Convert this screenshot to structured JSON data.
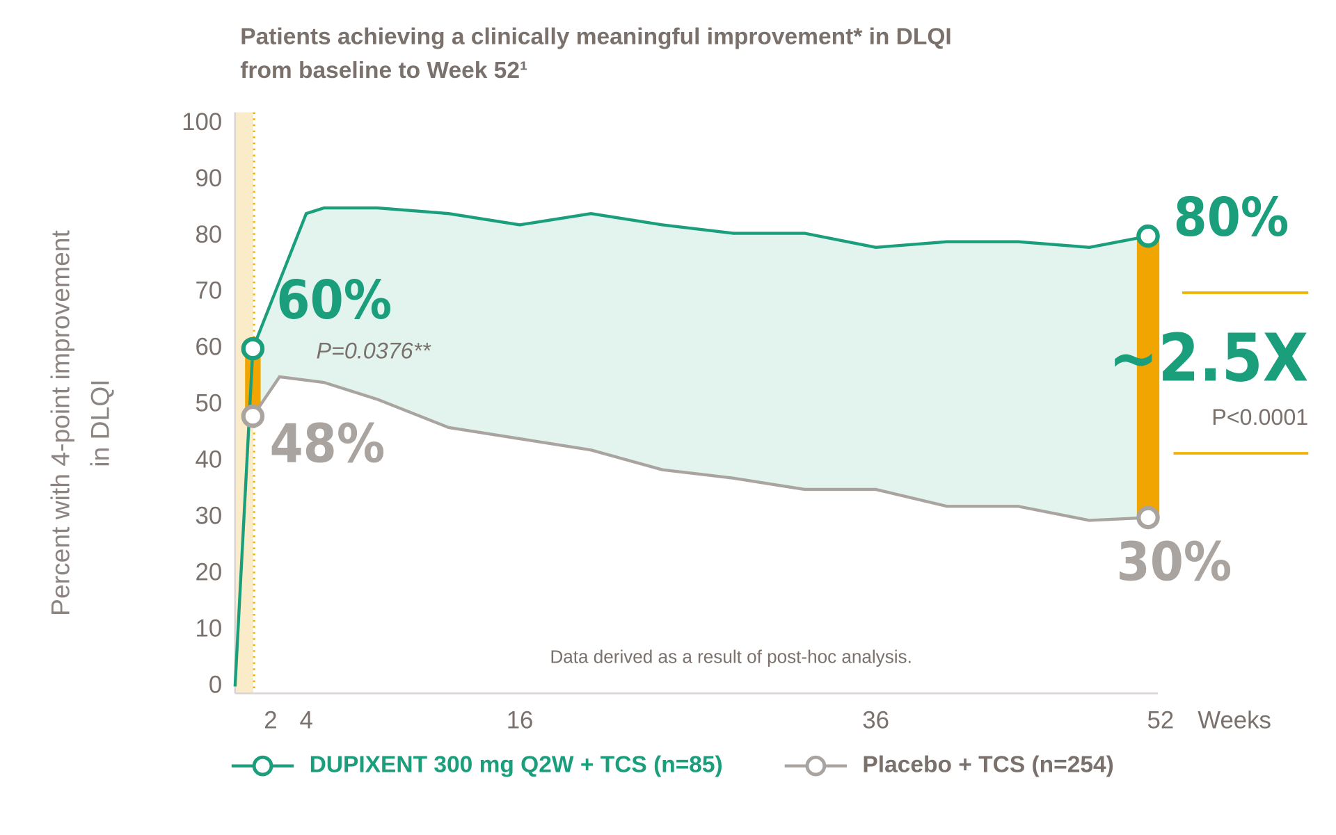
{
  "chart_data": {
    "type": "line",
    "title": [
      "Patients achieving a clinically meaningful improvement* in DLQI",
      "from baseline to Week 52¹"
    ],
    "y_label": [
      "Percent with 4-point improvement",
      "in DLQI"
    ],
    "x_unit": "Weeks",
    "xlim": [
      0,
      52
    ],
    "xticks": [
      2,
      4,
      16,
      36,
      52
    ],
    "ylim": [
      0,
      100
    ],
    "yticks": [
      0,
      10,
      20,
      30,
      40,
      50,
      60,
      70,
      80,
      90,
      100
    ],
    "grid": false,
    "series": [
      {
        "name": "DUPIXENT 300 mg Q2W + TCS (n=85)",
        "color": "#1a9e7c",
        "x": [
          0,
          1,
          2.5,
          4,
          5,
          8,
          12,
          16,
          20,
          24,
          28,
          32,
          36,
          40,
          44,
          48,
          51.3
        ],
        "values": [
          0,
          60,
          72,
          84,
          85,
          85,
          84,
          82,
          84,
          82,
          80.5,
          80.5,
          78,
          79,
          79,
          78,
          80
        ]
      },
      {
        "name": "Placebo + TCS (n=254)",
        "color": "#aaa4a1",
        "x": [
          1,
          2.5,
          5,
          8,
          12,
          16,
          20,
          24,
          28,
          32,
          36,
          40,
          44,
          48,
          51.3
        ],
        "values": [
          48,
          55,
          54,
          51,
          46,
          44,
          42,
          38.5,
          37,
          35,
          35,
          32,
          32,
          29.5,
          30
        ]
      }
    ],
    "annotations": [
      "60%",
      "P=0.0376**",
      "48%",
      "80%",
      "30%",
      "~2.5X",
      "P<0.0001",
      "Data derived as a result of post-hoc analysis."
    ]
  }
}
